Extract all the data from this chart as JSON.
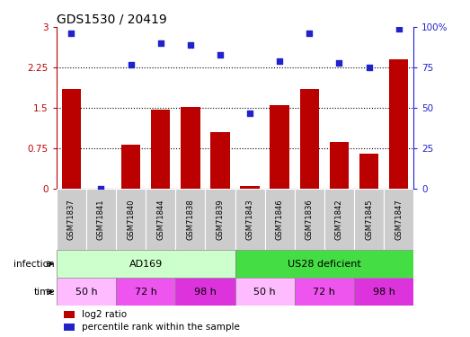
{
  "title": "GDS1530 / 20419",
  "samples": [
    "GSM71837",
    "GSM71841",
    "GSM71840",
    "GSM71844",
    "GSM71838",
    "GSM71839",
    "GSM71843",
    "GSM71846",
    "GSM71836",
    "GSM71842",
    "GSM71845",
    "GSM71847"
  ],
  "log2_ratio": [
    1.85,
    0.0,
    0.82,
    1.47,
    1.52,
    1.05,
    0.05,
    1.55,
    1.85,
    0.88,
    0.65,
    2.4
  ],
  "percentile_rank": [
    96,
    0,
    77,
    90,
    89,
    83,
    47,
    79,
    96,
    78,
    75,
    99
  ],
  "bar_color": "#bb0000",
  "dot_color": "#2222cc",
  "infection_groups": [
    {
      "label": "AD169",
      "start": 0,
      "end": 6,
      "color": "#ccffcc"
    },
    {
      "label": "US28 deficient",
      "start": 6,
      "end": 12,
      "color": "#44dd44"
    }
  ],
  "time_groups": [
    {
      "label": "50 h",
      "start": 0,
      "end": 2,
      "color": "#ffbbff"
    },
    {
      "label": "72 h",
      "start": 2,
      "end": 4,
      "color": "#ee55ee"
    },
    {
      "label": "98 h",
      "start": 4,
      "end": 6,
      "color": "#dd33dd"
    },
    {
      "label": "50 h",
      "start": 6,
      "end": 8,
      "color": "#ffbbff"
    },
    {
      "label": "72 h",
      "start": 8,
      "end": 10,
      "color": "#ee55ee"
    },
    {
      "label": "98 h",
      "start": 10,
      "end": 12,
      "color": "#dd33dd"
    }
  ],
  "legend_bar_label": "log2 ratio",
  "legend_dot_label": "percentile rank within the sample",
  "infection_label": "infection",
  "time_label": "time",
  "background_color": "#ffffff",
  "sample_box_color": "#cccccc",
  "right_ytick_labels": [
    "0",
    "25",
    "50",
    "75",
    "100%"
  ],
  "left_ytick_labels": [
    "0",
    "0.75",
    "1.5",
    "2.25",
    "3"
  ]
}
